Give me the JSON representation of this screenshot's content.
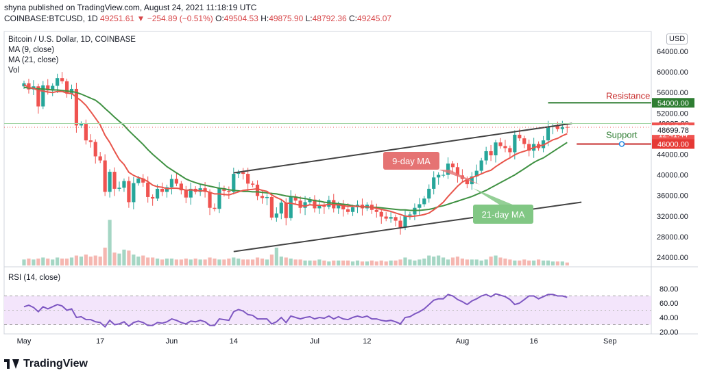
{
  "header": {
    "publisher": "shyna published on TradingView.com, August 24, 2021 11:18:19 UTC",
    "symbol": "COINBASE:BTCUSD, 1D",
    "price": "49251.61",
    "change": "−254.89 (−0.51%)",
    "open_label": "O:",
    "open": "49504.53",
    "high_label": "H:",
    "high": "49875.90",
    "low_label": "L:",
    "low": "48792.36",
    "close_label": "C:",
    "close": "49245.07"
  },
  "legend": {
    "title": "Bitcoin / U.S. Dollar, 1D, COINBASE",
    "ma9": "MA (9, close)",
    "ma21": "MA (21, close)",
    "vol": "Vol",
    "rsi": "RSI (14, close)"
  },
  "currency_button": "USD",
  "annotations": {
    "resistance": "Resistance",
    "support": "Support",
    "ma9_label": "9-day MA",
    "ma21_label": "21-day MA"
  },
  "price_tags": [
    {
      "text": "54000.00",
      "value": 54000,
      "bg": "#2e7d32"
    },
    {
      "text": "49985.90",
      "value": 49985.9,
      "bg": "#ffffff"
    },
    {
      "text": "49245.07",
      "value": 49245.07,
      "bg": "#ef5350"
    },
    {
      "text": "12:41:44",
      "value": 47850,
      "bg": "#ef5350"
    },
    {
      "text": "48699.78",
      "value": 48699.78,
      "bg": "#ffffff"
    },
    {
      "text": "46000.00",
      "value": 46000,
      "bg": "#e53935"
    }
  ],
  "footer_brand": "TradingView",
  "colors": {
    "up": "#26a69a",
    "down": "#ef5350",
    "ma9": "#e8554b",
    "ma21": "#3f9142",
    "rsi": "#7e57c2"
  },
  "chart_data": [
    {
      "type": "candlestick",
      "title": "Bitcoin / U.S. Dollar, 1D, COINBASE",
      "y_ticks": [
        24000,
        28000,
        32000,
        36000,
        40000,
        44000,
        48000,
        52000,
        56000,
        60000,
        64000
      ],
      "x_ticks": [
        {
          "label": "May",
          "day": 0
        },
        {
          "label": "17",
          "day": 16
        },
        {
          "label": "Jun",
          "day": 31
        },
        {
          "label": "14",
          "day": 44
        },
        {
          "label": "Jul",
          "day": 61
        },
        {
          "label": "12",
          "day": 72
        },
        {
          "label": "Aug",
          "day": 92
        },
        {
          "label": "16",
          "day": 107
        },
        {
          "label": "Sep",
          "day": 123
        }
      ],
      "close": [
        57800,
        56600,
        57200,
        53300,
        57400,
        56400,
        57300,
        58800,
        58200,
        55800,
        56700,
        49600,
        49900,
        46700,
        46400,
        43600,
        42800,
        36700,
        40600,
        37300,
        37500,
        38800,
        34700,
        38400,
        39300,
        38500,
        35700,
        35400,
        37300,
        36700,
        37600,
        39200,
        38300,
        37000,
        35600,
        37300,
        36700,
        37400,
        36700,
        33600,
        33400,
        37400,
        36900,
        36700,
        40200,
        40500,
        40200,
        38300,
        38100,
        35900,
        35500,
        35700,
        31700,
        32500,
        34600,
        31600,
        35800,
        35000,
        33600,
        34700,
        35200,
        33500,
        34100,
        33800,
        35100,
        33500,
        34300,
        33300,
        32800,
        33700,
        34200,
        33500,
        34200,
        33200,
        32800,
        31900,
        31500,
        31800,
        31100,
        29800,
        32100,
        32300,
        33600,
        34300,
        35400,
        37300,
        39500,
        40000,
        40000,
        42200,
        41500,
        39900,
        39200,
        38200,
        39700,
        40800,
        42800,
        44600,
        43800,
        46300,
        45600,
        45200,
        44400,
        47800,
        47100,
        46000,
        44700,
        46000,
        45200,
        46700,
        49300,
        49500,
        48900,
        49300,
        49245
      ],
      "ma9": [
        57500,
        57000,
        56800,
        56400,
        56300,
        56100,
        56000,
        56200,
        56200,
        55900,
        55800,
        55100,
        54400,
        53500,
        52300,
        51000,
        49700,
        47700,
        46300,
        44600,
        43000,
        42000,
        40500,
        39900,
        39500,
        39200,
        38700,
        38000,
        37700,
        37600,
        37300,
        37400,
        37400,
        37300,
        37000,
        37100,
        37000,
        36900,
        36900,
        36600,
        36300,
        36300,
        36200,
        36100,
        36400,
        36700,
        37000,
        37100,
        37200,
        37300,
        37000,
        36800,
        36100,
        35600,
        35200,
        34500,
        34500,
        34300,
        34100,
        33900,
        34200,
        34100,
        34100,
        34100,
        34300,
        34200,
        34200,
        34000,
        33900,
        33900,
        33900,
        33800,
        33800,
        33700,
        33500,
        33300,
        33100,
        32900,
        32600,
        32300,
        32000,
        31900,
        32000,
        32100,
        32300,
        32600,
        33200,
        33900,
        34700,
        35800,
        36800,
        37800,
        38600,
        39100,
        39500,
        39800,
        40200,
        40600,
        40900,
        41600,
        42200,
        42800,
        43300,
        43900,
        44300,
        44600,
        44900,
        45300,
        45600,
        45800,
        46300,
        46800,
        47100,
        47600,
        48000
      ],
      "ma21": [
        57000,
        56900,
        56800,
        56700,
        56700,
        56600,
        56500,
        56500,
        56400,
        56300,
        56200,
        56000,
        55700,
        55300,
        54900,
        54500,
        53800,
        52900,
        52100,
        51200,
        50400,
        49600,
        48600,
        47700,
        46800,
        45900,
        44900,
        44000,
        43200,
        42400,
        41600,
        41000,
        40400,
        39800,
        39200,
        38800,
        38500,
        38200,
        38000,
        37800,
        37600,
        37400,
        37300,
        37100,
        37000,
        36900,
        36800,
        36800,
        36700,
        36700,
        36600,
        36500,
        36400,
        36300,
        36100,
        35900,
        35800,
        35700,
        35500,
        35400,
        35200,
        35000,
        34900,
        34700,
        34600,
        34500,
        34400,
        34300,
        34200,
        34000,
        33900,
        33800,
        33800,
        33700,
        33700,
        33600,
        33500,
        33400,
        33300,
        33200,
        33200,
        33100,
        33100,
        33100,
        33200,
        33300,
        33500,
        33800,
        34000,
        34300,
        34600,
        34900,
        35200,
        35500,
        35800,
        36200,
        36600,
        37000,
        37500,
        38000,
        38500,
        39000,
        39500,
        40000,
        40600,
        41200,
        41800,
        42400,
        42900,
        43300,
        43900,
        44500,
        45100,
        45700,
        46300
      ],
      "volume": [
        6,
        7,
        6,
        7,
        8,
        7,
        6,
        8,
        7,
        7,
        8,
        10,
        9,
        11,
        9,
        10,
        9,
        18,
        46,
        13,
        12,
        16,
        15,
        11,
        9,
        10,
        8,
        8,
        7,
        6,
        7,
        7,
        6,
        6,
        7,
        6,
        7,
        6,
        6,
        8,
        7,
        6,
        6,
        7,
        8,
        7,
        6,
        6,
        6,
        8,
        7,
        6,
        11,
        18,
        9,
        8,
        7,
        6,
        6,
        5,
        5,
        5,
        6,
        5,
        4,
        5,
        5,
        5,
        5,
        4,
        5,
        4,
        4,
        5,
        4,
        5,
        4,
        5,
        5,
        6,
        8,
        6,
        5,
        6,
        7,
        10,
        9,
        10,
        8,
        6,
        8,
        9,
        7,
        6,
        6,
        6,
        5,
        6,
        9,
        10,
        8,
        7,
        6,
        5,
        5,
        6,
        5,
        5,
        6,
        5,
        5,
        4,
        4,
        4,
        3
      ],
      "trendlines": [
        {
          "name": "upper channel",
          "from": {
            "day": 44,
            "price": 40400
          },
          "to": {
            "day": 115,
            "price": 50000
          }
        },
        {
          "name": "lower channel",
          "from": {
            "day": 44,
            "price": 25100
          },
          "to": {
            "day": 117,
            "price": 34700
          }
        }
      ],
      "levels": [
        {
          "name": "Resistance",
          "price": 54000
        },
        {
          "name": "Support",
          "price": 46000
        }
      ]
    },
    {
      "type": "line",
      "title": "RSI (14, close)",
      "y_ticks": [
        20,
        40,
        60,
        80
      ],
      "band": [
        30,
        70
      ],
      "values": [
        55,
        57,
        54,
        48,
        55,
        52,
        55,
        58,
        56,
        50,
        52,
        40,
        41,
        37,
        37,
        34,
        33,
        27,
        36,
        30,
        31,
        34,
        28,
        33,
        35,
        33,
        29,
        29,
        33,
        32,
        34,
        38,
        36,
        33,
        31,
        35,
        34,
        36,
        34,
        29,
        29,
        38,
        37,
        36,
        48,
        51,
        49,
        44,
        43,
        38,
        38,
        38,
        31,
        34,
        40,
        33,
        42,
        40,
        38,
        40,
        41,
        38,
        40,
        39,
        42,
        38,
        41,
        38,
        37,
        40,
        42,
        40,
        42,
        38,
        38,
        36,
        35,
        36,
        34,
        31,
        40,
        41,
        45,
        48,
        52,
        58,
        64,
        66,
        66,
        72,
        70,
        65,
        62,
        58,
        63,
        66,
        70,
        72,
        69,
        73,
        71,
        69,
        65,
        58,
        60,
        65,
        70,
        70,
        66,
        69,
        72,
        72,
        70,
        70,
        68
      ]
    }
  ]
}
